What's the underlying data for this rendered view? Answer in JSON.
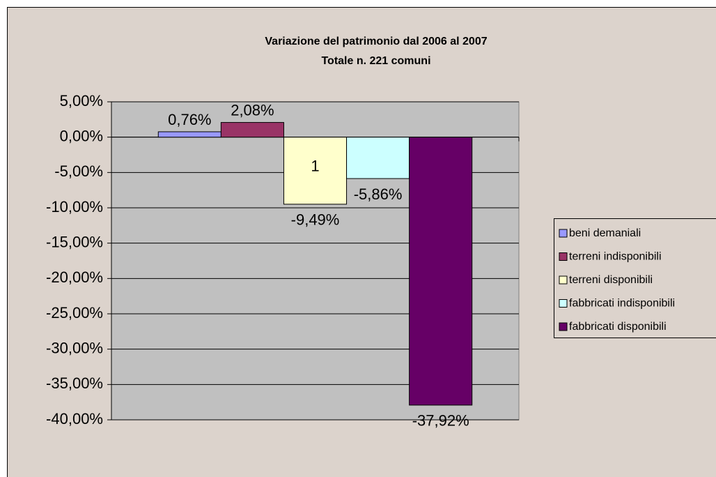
{
  "chart_data": {
    "type": "bar",
    "title": "Variazione del patrimonio dal 2006 al 2007",
    "subtitle": "Totale n. 221 comuni",
    "categories": [
      "1"
    ],
    "series": [
      {
        "name": "beni demaniali",
        "color": "#9999ff",
        "values": [
          0.76
        ],
        "value_labels": [
          "0,76%"
        ]
      },
      {
        "name": "terreni indisponibili",
        "color": "#993366",
        "values": [
          2.08
        ],
        "value_labels": [
          "2,08%"
        ]
      },
      {
        "name": "terreni disponibili",
        "color": "#ffffcc",
        "values": [
          -9.49
        ],
        "value_labels": [
          "-9,49%"
        ]
      },
      {
        "name": "fabbricati indisponibili",
        "color": "#ccffff",
        "values": [
          -5.86
        ],
        "value_labels": [
          "-5,86%"
        ]
      },
      {
        "name": "fabbricati disponibili",
        "color": "#660066",
        "values": [
          -37.92
        ],
        "value_labels": [
          "-37,92%"
        ]
      }
    ],
    "ylim": [
      -40,
      5
    ],
    "yticks": [
      {
        "value": 5,
        "label": "5,00%"
      },
      {
        "value": 0,
        "label": "0,00%"
      },
      {
        "value": -5,
        "label": "-5,00%"
      },
      {
        "value": -10,
        "label": "-10,00%"
      },
      {
        "value": -15,
        "label": "-15,00%"
      },
      {
        "value": -20,
        "label": "-20,00%"
      },
      {
        "value": -25,
        "label": "-25,00%"
      },
      {
        "value": -30,
        "label": "-30,00%"
      },
      {
        "value": -35,
        "label": "-35,00%"
      },
      {
        "value": -40,
        "label": "-40,00%"
      }
    ],
    "grid": true,
    "legend": "right"
  }
}
